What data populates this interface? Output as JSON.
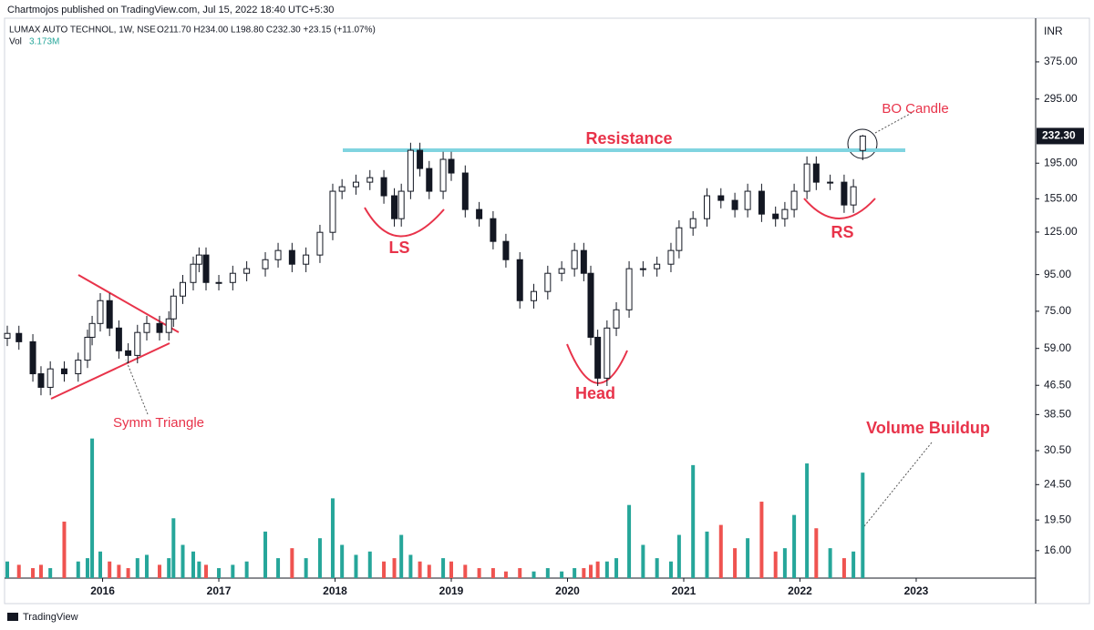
{
  "header": {
    "published": "Chartmojos published on TradingView.com, Jul 15, 2022 18:40 UTC+5:30",
    "currency": "INR"
  },
  "footer": "TradingView",
  "chart_data": {
    "type": "candlestick",
    "title": "LUMAX AUTO TECHNOL, 1W, NSE",
    "ohlc_text": "O211.70 H234.00 L198.80 C232.30 +23.15 (+11.07%)",
    "x": [
      2015.18,
      2015.28,
      2015.4,
      2015.47,
      2015.55,
      2015.67,
      2015.79,
      2015.87,
      2015.91,
      2015.98,
      2016.06,
      2016.14,
      2016.22,
      2016.3,
      2016.38,
      2016.49,
      2016.57,
      2016.61,
      2016.69,
      2016.78,
      2016.83,
      2016.89,
      2017.0,
      2017.12,
      2017.24,
      2017.4,
      2017.51,
      2017.63,
      2017.75,
      2017.87,
      2017.98,
      2018.06,
      2018.18,
      2018.3,
      2018.42,
      2018.51,
      2018.57,
      2018.65,
      2018.73,
      2018.81,
      2018.93,
      2019.0,
      2019.12,
      2019.24,
      2019.36,
      2019.47,
      2019.59,
      2019.71,
      2019.83,
      2019.95,
      2020.06,
      2020.14,
      2020.2,
      2020.26,
      2020.34,
      2020.42,
      2020.53,
      2020.65,
      2020.77,
      2020.89,
      2020.96,
      2021.08,
      2021.2,
      2021.32,
      2021.44,
      2021.55,
      2021.67,
      2021.79,
      2021.87,
      2021.95,
      2022.06,
      2022.14,
      2022.26,
      2022.38,
      2022.46,
      2022.54
    ],
    "open": [
      63,
      65,
      61.6,
      50.1,
      45.9,
      51.7,
      50.1,
      54.7,
      63.4,
      69.3,
      80.3,
      67.3,
      58.1,
      56.4,
      65.4,
      69.3,
      65.4,
      71.4,
      82.7,
      90.3,
      101.6,
      107.8,
      90.3,
      90.3,
      95.8,
      98.7,
      104.6,
      111,
      101.6,
      107.8,
      124.8,
      162.7,
      167.5,
      172.5,
      177.6,
      158,
      136.3,
      162.7,
      211.9,
      188.4,
      162.7,
      199.9,
      183,
      144.6,
      136.3,
      117.7,
      104.6,
      80.3,
      85.2,
      95.8,
      98.7,
      111,
      95.8,
      63.4,
      48.7,
      67.3,
      75.7,
      98.7,
      98.7,
      101.6,
      111,
      128.5,
      136.3,
      158,
      153.4,
      144.6,
      162.7,
      140.4,
      136.3,
      144.6,
      162.7,
      194,
      172.5,
      172.5,
      148.9,
      211.7
    ],
    "high": [
      68.3,
      68.3,
      64.7,
      52.6,
      54.3,
      54.3,
      57.4,
      66.6,
      72.8,
      84.3,
      84.3,
      70.7,
      61,
      68.7,
      72.8,
      72.8,
      75,
      86.8,
      94.8,
      106.7,
      113.2,
      113.2,
      94.8,
      100.6,
      103.6,
      109.8,
      116.6,
      116.6,
      113.2,
      131,
      170.8,
      175.9,
      181.1,
      186.5,
      186.5,
      165.9,
      170.8,
      222.5,
      222.5,
      197.8,
      209.9,
      209.9,
      192.2,
      151.8,
      143.1,
      123.6,
      109.8,
      89.5,
      100.6,
      103.6,
      116.6,
      116.6,
      100.6,
      66.6,
      70.7,
      79.5,
      103.6,
      103.6,
      106.7,
      116.6,
      134.9,
      143.1,
      165.9,
      165.9,
      161.1,
      170.8,
      170.8,
      147.4,
      151.8,
      170.8,
      203.7,
      203.7,
      181.1,
      181.1,
      175.9,
      234
    ],
    "low": [
      59.9,
      58.5,
      47.6,
      43.6,
      43.6,
      47.6,
      47.6,
      52,
      60.2,
      65.8,
      63.9,
      55.2,
      53.6,
      53.6,
      62.1,
      62.1,
      62.1,
      67.8,
      78.6,
      85.8,
      96.5,
      85.8,
      85.8,
      85.8,
      91,
      93.8,
      99.4,
      96.5,
      96.5,
      102.4,
      118.6,
      154.6,
      159.1,
      163.9,
      150.1,
      129.5,
      129.5,
      154.6,
      179,
      154.6,
      154.6,
      173.9,
      137.4,
      129.5,
      111.8,
      99.4,
      76.3,
      76.3,
      80.9,
      91,
      93.8,
      91,
      60.2,
      46.3,
      46.3,
      63.9,
      71.9,
      93.8,
      93.8,
      96.5,
      105.5,
      122.1,
      129.5,
      145.7,
      137.4,
      137.4,
      133.4,
      129.5,
      129.5,
      137.4,
      154.6,
      163.9,
      163.9,
      141.5,
      141.5,
      198.8
    ],
    "close": [
      65,
      61.6,
      50.1,
      45.9,
      51.7,
      50.1,
      54.7,
      63.4,
      69.3,
      80.3,
      67.3,
      58.1,
      56.4,
      65.4,
      69.3,
      65.4,
      71.4,
      82.7,
      90.3,
      101.6,
      107.8,
      90.3,
      90.3,
      95.8,
      98.7,
      104.6,
      111,
      101.6,
      107.8,
      124.8,
      162.7,
      167.5,
      172.5,
      177.6,
      158,
      136.3,
      162.7,
      211.9,
      188.4,
      162.7,
      199.9,
      183,
      144.6,
      136.3,
      117.7,
      104.6,
      80.3,
      85.2,
      95.8,
      98.7,
      111,
      95.8,
      63.4,
      48.7,
      67.3,
      75.7,
      98.7,
      98.7,
      101.6,
      111,
      128.5,
      136.3,
      158,
      153.4,
      144.6,
      162.7,
      140.4,
      136.3,
      144.6,
      162.7,
      194,
      172.5,
      172.5,
      148.9,
      167.5,
      232.3
    ],
    "candle_color": "#131722",
    "up_color": "#26a69a",
    "down_color": "#ef5350",
    "volume": {
      "name": "Vol",
      "last_value_label": "3.173M",
      "ylim": [
        0,
        6.3
      ],
      "values": [
        0.5,
        0.4,
        0.3,
        0.4,
        0.3,
        1.7,
        0.5,
        0.6,
        4.2,
        0.8,
        0.5,
        0.4,
        0.3,
        0.6,
        0.7,
        0.4,
        0.6,
        1.8,
        1.0,
        0.8,
        0.5,
        0.4,
        0.3,
        0.4,
        0.5,
        1.4,
        0.6,
        0.9,
        0.6,
        1.2,
        2.4,
        1.0,
        0.7,
        0.8,
        0.5,
        0.6,
        1.3,
        0.7,
        0.5,
        0.4,
        0.6,
        0.5,
        0.4,
        0.3,
        0.3,
        0.2,
        0.3,
        0.2,
        0.3,
        0.2,
        0.3,
        0.3,
        0.4,
        0.5,
        0.5,
        0.6,
        2.2,
        1.0,
        0.6,
        0.5,
        1.3,
        3.4,
        1.4,
        1.6,
        0.9,
        1.2,
        2.3,
        0.8,
        0.9,
        1.9,
        3.45,
        1.5,
        0.9,
        0.6,
        0.8,
        3.173
      ]
    },
    "last_price": {
      "value": 232.3,
      "label": "232.30"
    },
    "log_scale": true,
    "grid": false,
    "xlim": [
      2015.18,
      2024.02
    ],
    "xticks": [
      2016,
      2017,
      2018,
      2019,
      2020,
      2021,
      2022,
      2023
    ],
    "ylim": [
      13.4,
      497
    ],
    "yticks": [
      {
        "value": 375,
        "label": "375.00"
      },
      {
        "value": 295,
        "label": "295.00"
      },
      {
        "value": 195,
        "label": "195.00"
      },
      {
        "value": 155,
        "label": "155.00"
      },
      {
        "value": 125,
        "label": "125.00"
      },
      {
        "value": 95,
        "label": "95.00"
      },
      {
        "value": 75,
        "label": "75.00"
      },
      {
        "value": 59,
        "label": "59.00"
      },
      {
        "value": 46.5,
        "label": "46.50"
      },
      {
        "value": 38.5,
        "label": "38.50"
      },
      {
        "value": 30.5,
        "label": "30.50"
      },
      {
        "value": 24.5,
        "label": "24.50"
      },
      {
        "value": 19.5,
        "label": "19.50"
      },
      {
        "value": 16,
        "label": "16.00"
      }
    ],
    "resistance_level": 212,
    "resistance_color": "#80d4e0",
    "annotation_color": "#e8334a",
    "annotations": {
      "resistance": "Resistance",
      "left_shoulder": "LS",
      "head": "Head",
      "right_shoulder": "RS",
      "breakout": "BO Candle",
      "triangle": "Symm Triangle",
      "volume": "Volume Buildup"
    }
  }
}
